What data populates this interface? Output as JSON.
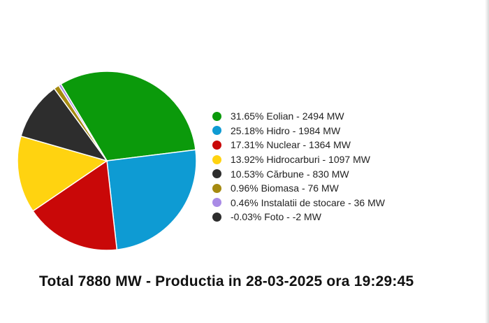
{
  "chart_data": {
    "type": "pie",
    "legend_position": "right",
    "slices": [
      {
        "label": "31.65% Eolian - 2494 MW",
        "percent": 31.65,
        "value": 2494,
        "color": "#0b9a0b"
      },
      {
        "label": "25.18% Hidro - 1984 MW",
        "percent": 25.18,
        "value": 1984,
        "color": "#0e9bd3"
      },
      {
        "label": "17.31% Nuclear - 1364 MW",
        "percent": 17.31,
        "value": 1364,
        "color": "#c90808"
      },
      {
        "label": "13.92% Hidrocarburi - 1097 MW",
        "percent": 13.92,
        "value": 1097,
        "color": "#ffd310"
      },
      {
        "label": "10.53% Cărbune - 830 MW",
        "percent": 10.53,
        "value": 830,
        "color": "#2d2d2d"
      },
      {
        "label": "0.96% Biomasa - 76 MW",
        "percent": 0.96,
        "value": 76,
        "color": "#a58a10"
      },
      {
        "label": "0.46% Instalatii de stocare - 36 MW",
        "percent": 0.46,
        "value": 36,
        "color": "#a98be6"
      },
      {
        "label": "-0.03% Foto - -2 MW",
        "percent": -0.03,
        "value": -2,
        "color": "#2d2d2d"
      }
    ]
  },
  "footer": {
    "text": "Total 7880 MW - Productia in 28-03-2025 ora 19:29:45"
  }
}
